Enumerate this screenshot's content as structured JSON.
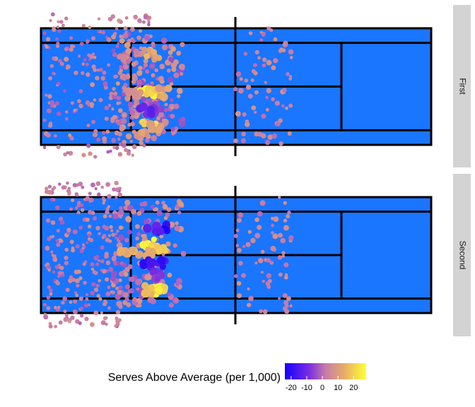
{
  "chart_data": {
    "type": "heatmap",
    "description_free": true,
    "panels": [
      {
        "label": "First",
        "shot_count_note": ""
      },
      {
        "label": "Second",
        "shot_count_note": ""
      }
    ],
    "legend": {
      "title": "Serves Above Average (per 1,000)",
      "ticks": [
        -20,
        -10,
        0,
        10,
        20
      ],
      "tick_labels": [
        "-20",
        "-10",
        "0",
        "10",
        "20"
      ],
      "range": [
        -24,
        28
      ],
      "colors": [
        "#1400ff",
        "#7a2ee0",
        "#c77ba8",
        "#e6aa6b",
        "#ffff33"
      ]
    },
    "court_color": "#1a75ff",
    "line_color": "#000000",
    "strip_color": "#d3d3d3",
    "first_clusters": [
      {
        "x": 0.27,
        "y": 0.56,
        "val": 25
      },
      {
        "x": 0.29,
        "y": 0.56,
        "val": 18
      },
      {
        "x": 0.31,
        "y": 0.55,
        "val": 10
      },
      {
        "x": 0.28,
        "y": 0.84,
        "val": 20
      },
      {
        "x": 0.3,
        "y": 0.84,
        "val": 8
      },
      {
        "x": 0.29,
        "y": 0.7,
        "val": -8
      },
      {
        "x": 0.27,
        "y": 0.7,
        "val": -12
      },
      {
        "x": 0.29,
        "y": 0.22,
        "val": 12
      },
      {
        "x": 0.24,
        "y": 0.58,
        "val": 6
      },
      {
        "x": 0.25,
        "y": 0.92,
        "val": 8
      }
    ],
    "second_clusters": [
      {
        "x": 0.31,
        "y": 0.26,
        "val": -22
      },
      {
        "x": 0.29,
        "y": 0.28,
        "val": -15
      },
      {
        "x": 0.28,
        "y": 0.4,
        "val": 25
      },
      {
        "x": 0.3,
        "y": 0.42,
        "val": 20
      },
      {
        "x": 0.27,
        "y": 0.48,
        "val": 10
      },
      {
        "x": 0.3,
        "y": 0.56,
        "val": -18
      },
      {
        "x": 0.28,
        "y": 0.58,
        "val": -20
      },
      {
        "x": 0.29,
        "y": 0.8,
        "val": 26
      },
      {
        "x": 0.31,
        "y": 0.8,
        "val": 22
      },
      {
        "x": 0.27,
        "y": 0.8,
        "val": 15
      },
      {
        "x": 0.3,
        "y": 0.68,
        "val": -10
      },
      {
        "x": 0.22,
        "y": 0.45,
        "val": 12
      }
    ]
  }
}
